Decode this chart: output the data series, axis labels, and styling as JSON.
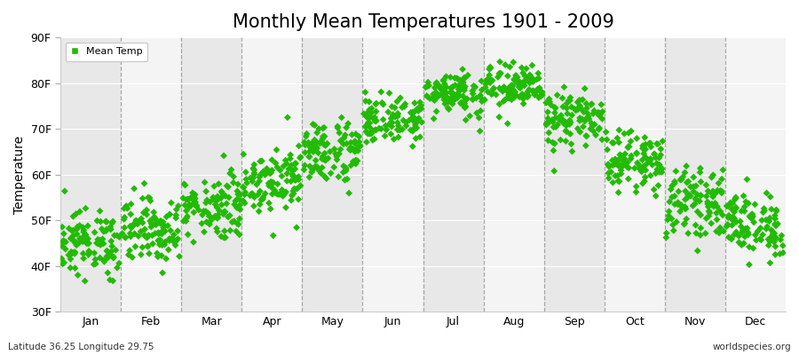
{
  "title": "Monthly Mean Temperatures 1901 - 2009",
  "ylabel": "Temperature",
  "bottom_left_text": "Latitude 36.25 Longitude 29.75",
  "bottom_right_text": "worldspecies.org",
  "legend_label": "Mean Temp",
  "months": [
    "Jan",
    "Feb",
    "Mar",
    "Apr",
    "May",
    "Jun",
    "Jul",
    "Aug",
    "Sep",
    "Oct",
    "Nov",
    "Dec"
  ],
  "yticks": [
    30,
    40,
    50,
    60,
    70,
    80,
    90
  ],
  "ytick_labels": [
    "30F",
    "40F",
    "50F",
    "60F",
    "70F",
    "80F",
    "90F"
  ],
  "ylim": [
    30,
    90
  ],
  "xlim": [
    0,
    12
  ],
  "marker_color": "#22bb00",
  "marker": "D",
  "marker_size": 4,
  "fig_bg_color": "#ffffff",
  "plot_bg_color": "#f0f0f0",
  "band_colors": [
    "#e8e8e8",
    "#f4f4f4"
  ],
  "title_fontsize": 15,
  "label_fontsize": 10,
  "tick_fontsize": 9,
  "month_means": [
    45,
    48,
    53,
    59,
    65,
    72,
    78,
    79,
    72,
    63,
    54,
    49
  ],
  "month_stds": [
    3.5,
    3.5,
    3.5,
    3.5,
    3.5,
    2.5,
    2.5,
    2.5,
    3.0,
    3.0,
    3.5,
    3.5
  ],
  "n_years": 109
}
